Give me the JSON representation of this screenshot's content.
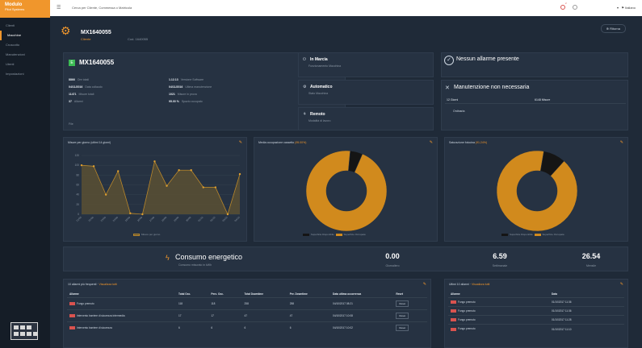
{
  "app": {
    "brand": "Modulo",
    "brand_sub": "Pilot Systems"
  },
  "sidebar": {
    "items": [
      {
        "label": "Clienti"
      },
      {
        "label": "Macchine",
        "active": true
      },
      {
        "label": "Cruscotto"
      },
      {
        "label": "Manutenzioni"
      },
      {
        "label": "Utenti"
      },
      {
        "label": "Impostazioni"
      }
    ]
  },
  "topbar": {
    "search_placeholder": "Cerca per Cliente, Commessa o Matricola",
    "notification_count": "2",
    "language": "Italiano"
  },
  "page": {
    "title": "MX1640055",
    "subtitle": "Cliente",
    "subtitle2": "Cod. 1640055",
    "back_label": "Ritorna"
  },
  "machine": {
    "code": "MX1640055",
    "badge": "E",
    "update_label": "Ultimo aggiornamento",
    "update_value": "04/10/2017 11:06",
    "stats_left": [
      {
        "value": "8866",
        "label": "Ore totali"
      },
      {
        "value": "04/11/2016",
        "label": "Data collaudo"
      },
      {
        "value": "11471",
        "label": "Misure totali"
      },
      {
        "value": "37",
        "label": "Allarmi"
      }
    ],
    "stats_right": [
      {
        "value": "1.12.13",
        "label": "Versione Software"
      },
      {
        "value": "04/11/2016",
        "label": "Ultima manutenzione"
      },
      {
        "value": "1021",
        "label": "Misure in prova"
      },
      {
        "value": "95.00 %",
        "label": "Spazio occupato"
      }
    ],
    "footer": "File"
  },
  "status": [
    {
      "title": "In Marcia",
      "sub": "Funzionamento Macchina"
    },
    {
      "title": "Automatico",
      "sub": "Stato Macchina"
    },
    {
      "title": "Remoto",
      "sub": "Modalità di lavoro"
    }
  ],
  "alarm": {
    "title": "Nessun allarme presente"
  },
  "maintenance": {
    "title": "Manutenzione non necessaria",
    "col1_label": "12 Giorni",
    "col2_label": "6148 Misure",
    "row_label": "Ordinaria"
  },
  "chart_data": [
    {
      "type": "area",
      "title": "Misure per giorno (ultimi 14 giorni)",
      "categories": [
        "21/09",
        "22/09",
        "23/09",
        "24/09",
        "25/09",
        "26/09",
        "27/09",
        "28/09",
        "29/09",
        "30/09",
        "01/10",
        "02/10",
        "03/10",
        "04/10"
      ],
      "values": [
        100,
        98,
        40,
        88,
        2,
        0,
        108,
        58,
        90,
        90,
        55,
        55,
        0,
        82
      ],
      "ylim": [
        0,
        120
      ],
      "yticks": [
        0,
        20,
        40,
        60,
        80,
        100,
        120
      ],
      "legend": "Misure per giorno",
      "colors": {
        "line": "#b8862a",
        "fill": "#5a5032",
        "point": "#e0a030"
      }
    },
    {
      "type": "pie",
      "title": "Media occupazione cassetto",
      "title_highlight": "(95.00%)",
      "slices": [
        {
          "name": "Superficie Disponibile",
          "value": 5,
          "color": "#151515"
        },
        {
          "name": "Superficie Occupata",
          "value": 95,
          "color": "#d18a1d"
        }
      ]
    },
    {
      "type": "pie",
      "title": "Saturazione fotocina",
      "title_highlight": "(91.24%)",
      "slices": [
        {
          "name": "Superficie Disponibile",
          "value": 9,
          "color": "#151515"
        },
        {
          "name": "Superficie Occupata",
          "value": 91,
          "color": "#d18a1d"
        }
      ]
    }
  ],
  "energy": {
    "title": "Consumo energetico",
    "sub": "Consumo misurato in kWh",
    "metrics": [
      {
        "value": "0.00",
        "label": "Giornaliero"
      },
      {
        "value": "6.59",
        "label": "Settimanale"
      },
      {
        "value": "26.54",
        "label": "Mensile"
      }
    ]
  },
  "alarms_table": {
    "title": "10 allarmi più frequenti",
    "link": "Visualizza tutti",
    "headers": [
      "Allarme",
      "Total Occ.",
      "Perc. Occ.",
      "Total Downtime",
      "Per. Downtime",
      "Data ultima occorrenza",
      "Reset"
    ],
    "rows": [
      [
        "Fungo premuto",
        "118",
        "118",
        "258",
        "258",
        "04/10/2017 08:21",
        "Reset"
      ],
      [
        "Intervento barriere di sicurezza intermedia",
        "17",
        "17",
        "47",
        "47",
        "04/10/2017 10:08",
        "Reset"
      ],
      [
        "Intervento barriere di sicurezza",
        "6",
        "6",
        "6",
        "6",
        "04/10/2017 10:02",
        "Reset"
      ]
    ]
  },
  "last_alarms": {
    "title": "Ultimi 10 allarmi",
    "link": "Visualizza tutti",
    "headers": [
      "Allarme",
      "Data"
    ],
    "rows": [
      [
        "Fungo premuto",
        "01/10/2017 11:36"
      ],
      [
        "Fungo premuto",
        "01/10/2017 11:36"
      ],
      [
        "Fungo premuto",
        "01/10/2017 11:28"
      ],
      [
        "Fungo premuto",
        "01/10/2017 11:10"
      ]
    ]
  }
}
